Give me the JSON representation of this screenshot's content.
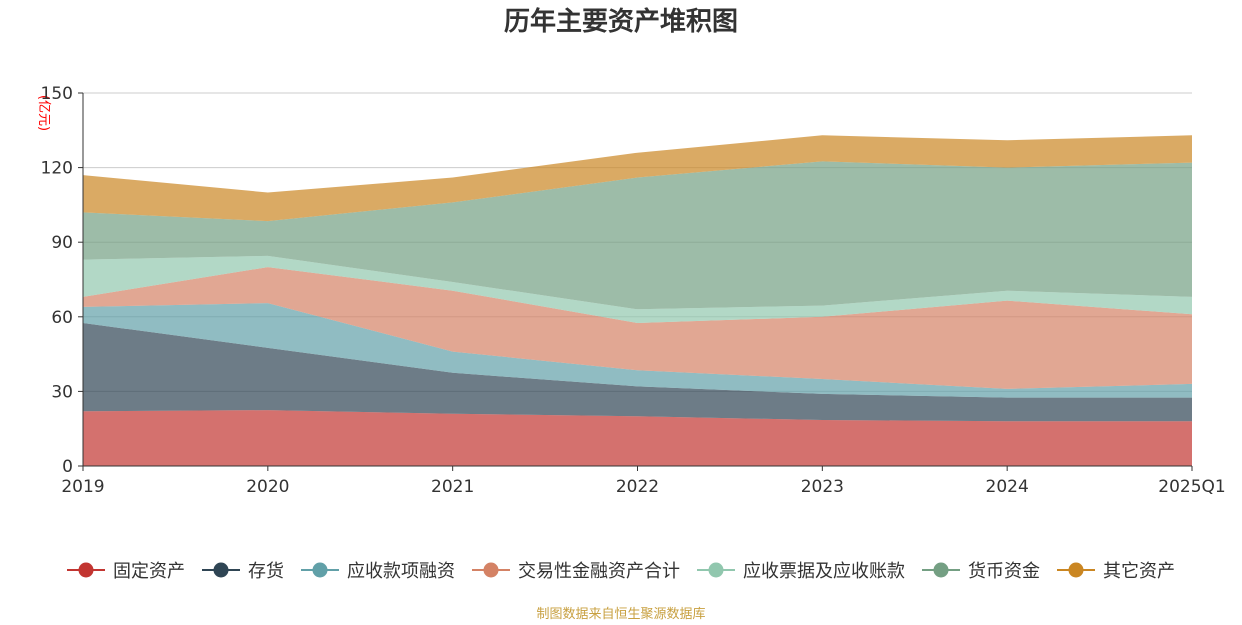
{
  "chart_data": {
    "type": "area",
    "stacked": true,
    "title": "历年主要资产堆积图",
    "unit_label": "(亿元)",
    "x": [
      "2019",
      "2020",
      "2021",
      "2022",
      "2023",
      "2024",
      "2025Q1"
    ],
    "ylim": [
      0,
      150
    ],
    "yticks": [
      0,
      30,
      60,
      90,
      120,
      150
    ],
    "grid": true,
    "legend_position": "bottom",
    "series": [
      {
        "name": "固定资产",
        "color": "#c23531",
        "values": [
          22,
          22.5,
          21,
          20,
          18.5,
          18,
          18
        ]
      },
      {
        "name": "存货",
        "color": "#2f4554",
        "values": [
          35.5,
          25,
          16.5,
          12,
          10.5,
          9.5,
          9.5
        ]
      },
      {
        "name": "应收款项融资",
        "color": "#61a0a8",
        "values": [
          6.5,
          18,
          8.5,
          6.5,
          6,
          3.5,
          5.5
        ]
      },
      {
        "name": "交易性金融资产合计",
        "color": "#d48265",
        "values": [
          4,
          14.5,
          24.5,
          19,
          25,
          35.5,
          28
        ]
      },
      {
        "name": "应收票据及应收账款",
        "color": "#91c7ae",
        "values": [
          15,
          4.5,
          3.5,
          5.5,
          4.5,
          4,
          7
        ]
      },
      {
        "name": "货币资金",
        "color": "#749f83",
        "values": [
          19,
          14,
          32,
          53,
          58,
          49.5,
          54
        ]
      },
      {
        "name": "其它资产",
        "color": "#ca8622",
        "values": [
          15,
          11.5,
          10,
          10,
          10.5,
          11,
          11
        ]
      }
    ],
    "source_note": "制图数据来自恒生聚源数据库"
  }
}
